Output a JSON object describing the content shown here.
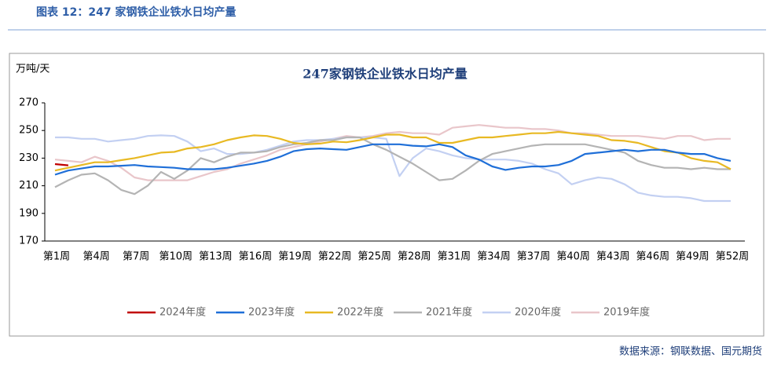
{
  "page_title": "图表 12：247 家钢铁企业铁水日均产量",
  "source": "数据来源：钢联数据、国元期货",
  "chart_data": {
    "type": "line",
    "title": "247家钢铁企业铁水日均产量",
    "y_label": "万吨/天",
    "categories": [
      "第1周",
      null,
      null,
      "第4周",
      null,
      null,
      "第7周",
      null,
      null,
      "第10周",
      null,
      null,
      "第13周",
      null,
      null,
      "第16周",
      null,
      null,
      "第19周",
      null,
      null,
      "第22周",
      null,
      null,
      "第25周",
      null,
      null,
      "第28周",
      null,
      null,
      "第31周",
      null,
      null,
      "第34周",
      null,
      null,
      "第37周",
      null,
      null,
      "第40周",
      null,
      null,
      "第43周",
      null,
      null,
      "第46周",
      null,
      null,
      "第49周",
      null,
      null,
      "第52周"
    ],
    "ylim": [
      170,
      270
    ],
    "yticks": [
      170,
      190,
      210,
      230,
      250,
      270
    ],
    "grid": false,
    "legend": "bottom",
    "series": [
      {
        "name": "2024年度",
        "color": "#c00000",
        "values": [
          225.7,
          224.8,
          null,
          null,
          null,
          null,
          null,
          null,
          null,
          null,
          null,
          null,
          null,
          null,
          null,
          null,
          null,
          null,
          null,
          null,
          null,
          null,
          null,
          null,
          null,
          null,
          null,
          null,
          null,
          null,
          null,
          null,
          null,
          null,
          null,
          null,
          null,
          null,
          null,
          null,
          null,
          null,
          null,
          null,
          null,
          null,
          null,
          null,
          null,
          null,
          null,
          null
        ]
      },
      {
        "name": "2023年度",
        "color": "#1f6fd8",
        "values": [
          218,
          221,
          222.5,
          224,
          224,
          224.5,
          225,
          224,
          223.5,
          223,
          222,
          222,
          222,
          223,
          224.5,
          226,
          228,
          231,
          235,
          236.5,
          237,
          236.5,
          236,
          238,
          240,
          240,
          240,
          239,
          238.5,
          240,
          238,
          232,
          229,
          224,
          221.5,
          223,
          224,
          224,
          225,
          228,
          233,
          234,
          235,
          236,
          235,
          236,
          236,
          234,
          233,
          233,
          230,
          228
        ]
      },
      {
        "name": "2022年度",
        "color": "#e8b923",
        "values": [
          221,
          223,
          225,
          227,
          227,
          228.5,
          230,
          232,
          234,
          234.5,
          237,
          238,
          240,
          243,
          245,
          246.5,
          246,
          244,
          241,
          240,
          240.5,
          242,
          241.5,
          243,
          245,
          247,
          247,
          245,
          245,
          241,
          241,
          243,
          245,
          245,
          246,
          247,
          248,
          248,
          249,
          248,
          247,
          246,
          243,
          242.5,
          241,
          238,
          235,
          234,
          230,
          228,
          227,
          222
        ]
      },
      {
        "name": "2021年度",
        "color": "#b4b4b4",
        "values": [
          209,
          214,
          218,
          219,
          214,
          207,
          204,
          210,
          220,
          215,
          221,
          230,
          227,
          231,
          234,
          234,
          235,
          238,
          240,
          241,
          243,
          243,
          245,
          245,
          240,
          236,
          231,
          226,
          220,
          214,
          215,
          221,
          228,
          233,
          235,
          237,
          239,
          240,
          240,
          240,
          240,
          238,
          236,
          234,
          228,
          225,
          223,
          223,
          222,
          223,
          222,
          222
        ]
      },
      {
        "name": "2020年度",
        "color": "#c3d0f2",
        "values": [
          245,
          245,
          244,
          244,
          242,
          243,
          244,
          246,
          246.5,
          246,
          242,
          235,
          237,
          233,
          233,
          234,
          236,
          239,
          242,
          243,
          243,
          244,
          245,
          245,
          245,
          244,
          217,
          230,
          237,
          235,
          232,
          230,
          229,
          229,
          229,
          228,
          226,
          222,
          219,
          211,
          214,
          216,
          215,
          211,
          205,
          203,
          202,
          202,
          201,
          199,
          199,
          199
        ]
      },
      {
        "name": "2019年度",
        "color": "#e9c6ca",
        "values": [
          229,
          228,
          227,
          231,
          228,
          223,
          216,
          214,
          214,
          214,
          214,
          217,
          220,
          222,
          226,
          229,
          232,
          236,
          238,
          240,
          242,
          244,
          246,
          245,
          246,
          248,
          249,
          248,
          248,
          247,
          252,
          253,
          254,
          253,
          252,
          252,
          251,
          251,
          250,
          248,
          248,
          247,
          246,
          246,
          246,
          245,
          244,
          246,
          246,
          243,
          244,
          244
        ]
      }
    ]
  }
}
